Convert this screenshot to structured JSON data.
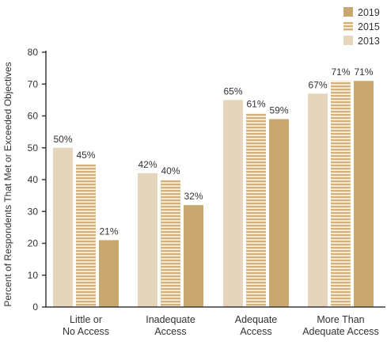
{
  "chart_data": {
    "type": "bar",
    "title": "",
    "xlabel": "",
    "ylabel": "Percent of Respondents That Met or Exceeded Objectives",
    "ylim": [
      0,
      80
    ],
    "yticks": [
      0,
      10,
      20,
      30,
      40,
      50,
      60,
      70,
      80
    ],
    "categories": [
      [
        "Little or",
        "No Access"
      ],
      [
        "Inadequate",
        "Access"
      ],
      [
        "Adequate",
        "Access"
      ],
      [
        "More Than",
        "Adequate Access"
      ]
    ],
    "series": [
      {
        "name": "2013",
        "values": [
          50,
          42,
          65,
          67
        ],
        "labels": [
          "50%",
          "42%",
          "65%",
          "67%"
        ],
        "color": "#e6d5bd",
        "pattern": "solid"
      },
      {
        "name": "2015",
        "values": [
          45,
          40,
          61,
          71
        ],
        "labels": [
          "45%",
          "40%",
          "61%",
          "71%"
        ],
        "color": "#d2b37f",
        "pattern": "striped"
      },
      {
        "name": "2019",
        "values": [
          21,
          32,
          59,
          71
        ],
        "labels": [
          "21%",
          "32%",
          "59%",
          "71%"
        ],
        "color": "#c9a86f",
        "pattern": "solid"
      }
    ],
    "legend": {
      "position": "top-right",
      "order": [
        "2019",
        "2015",
        "2013"
      ]
    },
    "grid": false,
    "axis_color": "#3a3a3a"
  }
}
